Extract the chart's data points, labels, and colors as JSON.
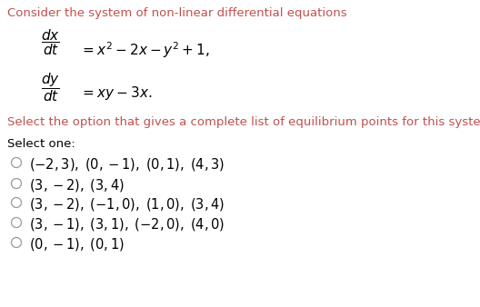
{
  "background_color": "#ffffff",
  "title_text": "Consider the system of non-linear differential equations",
  "title_color": "#c0504d",
  "title_fontsize": 9.5,
  "eq1_frac": "$\\dfrac{dx}{dt}$",
  "eq1_rhs": "$= x^2 - 2x - y^2 + 1,$",
  "eq2_frac": "$\\dfrac{dy}{dt}$",
  "eq2_rhs": "$= xy - 3x.$",
  "select_text": "Select the option that gives a complete list of equilibrium points for this system.",
  "select_color": "#c0504d",
  "select_fontsize": 9.5,
  "select_one_text": "Select one:",
  "select_one_color": "#000000",
  "select_one_fontsize": 9.5,
  "options": [
    "$(-2,3),\\; (0,-1),\\; (0,1),\\; (4,3)$",
    "$(3,-2),\\; (3,4)$",
    "$(3,-2),\\; (-1,0),\\; (1,0),\\; (3,4)$",
    "$(3,-1),\\; (3,1),\\; (-2,0),\\; (4,0)$",
    "$(0,-1),\\; (0,1)$"
  ],
  "options_color": "#000000",
  "options_fontsize": 10.5,
  "circle_color": "#999999",
  "math_color": "#000000",
  "math_fontsize": 11,
  "rhs_fontsize": 11
}
